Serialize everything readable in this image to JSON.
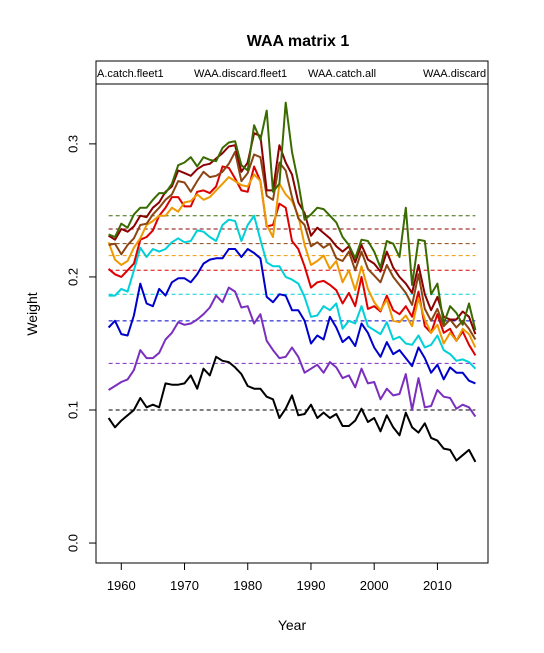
{
  "chart_data": {
    "type": "line",
    "title": "WAA matrix 1",
    "xlabel": "Year",
    "ylabel": "Weight",
    "xlim": [
      1956,
      2018
    ],
    "ylim": [
      -0.015,
      0.345
    ],
    "x_ticks": [
      1960,
      1970,
      1980,
      1990,
      2000,
      2010
    ],
    "x_tick_labels": [
      "1960",
      "1970",
      "1980",
      "1990",
      "2000",
      "2010"
    ],
    "y_ticks": [
      0.0,
      0.1,
      0.2,
      0.3
    ],
    "y_tick_labels": [
      "0.0",
      "0.1",
      "0.2",
      "0.3"
    ],
    "legend_placement": "top (strip above plot, clipped)",
    "legend_labels": [
      "A.catch.fleet1",
      "WAA.discard.fleet1",
      "WAA.catch.all",
      "WAA.discard"
    ],
    "grid": false,
    "x": [
      1958,
      1959,
      1960,
      1961,
      1962,
      1963,
      1964,
      1965,
      1966,
      1967,
      1968,
      1969,
      1970,
      1971,
      1972,
      1973,
      1974,
      1975,
      1976,
      1977,
      1978,
      1979,
      1980,
      1981,
      1982,
      1983,
      1984,
      1985,
      1986,
      1987,
      1988,
      1989,
      1990,
      1991,
      1992,
      1993,
      1994,
      1995,
      1996,
      1997,
      1998,
      1999,
      2000,
      2001,
      2002,
      2003,
      2004,
      2005,
      2006,
      2007,
      2008,
      2009,
      2010,
      2011,
      2012,
      2013,
      2014,
      2015,
      2016
    ],
    "series": [
      {
        "color": "#000000",
        "mean": 0.1,
        "values": [
          0.094,
          0.087,
          0.092,
          0.096,
          0.1,
          0.109,
          0.102,
          0.104,
          0.102,
          0.12,
          0.119,
          0.119,
          0.12,
          0.126,
          0.116,
          0.131,
          0.126,
          0.14,
          0.137,
          0.136,
          0.132,
          0.127,
          0.118,
          0.116,
          0.116,
          0.11,
          0.108,
          0.094,
          0.101,
          0.111,
          0.096,
          0.097,
          0.104,
          0.094,
          0.098,
          0.094,
          0.097,
          0.088,
          0.088,
          0.092,
          0.101,
          0.091,
          0.094,
          0.084,
          0.096,
          0.087,
          0.081,
          0.098,
          0.087,
          0.083,
          0.09,
          0.079,
          0.077,
          0.071,
          0.07,
          0.062,
          0.066,
          0.07,
          0.061
        ]
      },
      {
        "color": "#7b2fbe",
        "mean": 0.135,
        "values": [
          0.115,
          0.118,
          0.121,
          0.123,
          0.13,
          0.145,
          0.139,
          0.139,
          0.143,
          0.153,
          0.158,
          0.166,
          0.164,
          0.165,
          0.168,
          0.172,
          0.177,
          0.186,
          0.181,
          0.192,
          0.189,
          0.177,
          0.178,
          0.165,
          0.172,
          0.152,
          0.145,
          0.139,
          0.14,
          0.147,
          0.14,
          0.128,
          0.131,
          0.134,
          0.128,
          0.136,
          0.132,
          0.124,
          0.126,
          0.117,
          0.131,
          0.12,
          0.121,
          0.108,
          0.116,
          0.111,
          0.112,
          0.127,
          0.1,
          0.124,
          0.102,
          0.103,
          0.115,
          0.11,
          0.109,
          0.101,
          0.104,
          0.102,
          0.095
        ]
      },
      {
        "color": "#0000cc",
        "mean": 0.167,
        "values": [
          0.162,
          0.167,
          0.157,
          0.156,
          0.171,
          0.195,
          0.18,
          0.178,
          0.191,
          0.186,
          0.196,
          0.199,
          0.199,
          0.196,
          0.202,
          0.21,
          0.213,
          0.214,
          0.214,
          0.221,
          0.221,
          0.215,
          0.221,
          0.218,
          0.214,
          0.185,
          0.181,
          0.187,
          0.186,
          0.175,
          0.175,
          0.167,
          0.15,
          0.156,
          0.153,
          0.17,
          0.162,
          0.151,
          0.155,
          0.148,
          0.165,
          0.158,
          0.147,
          0.14,
          0.151,
          0.142,
          0.145,
          0.139,
          0.133,
          0.147,
          0.139,
          0.128,
          0.134,
          0.123,
          0.132,
          0.128,
          0.128,
          0.122,
          0.12
        ]
      },
      {
        "color": "#00d0d8",
        "mean": 0.187,
        "values": [
          0.186,
          0.186,
          0.191,
          0.189,
          0.205,
          0.222,
          0.215,
          0.221,
          0.219,
          0.221,
          0.226,
          0.229,
          0.226,
          0.227,
          0.235,
          0.234,
          0.23,
          0.227,
          0.239,
          0.243,
          0.242,
          0.227,
          0.239,
          0.246,
          0.228,
          0.211,
          0.208,
          0.208,
          0.2,
          0.198,
          0.195,
          0.185,
          0.17,
          0.171,
          0.178,
          0.175,
          0.18,
          0.161,
          0.167,
          0.165,
          0.178,
          0.163,
          0.16,
          0.157,
          0.166,
          0.153,
          0.155,
          0.15,
          0.149,
          0.156,
          0.147,
          0.149,
          0.156,
          0.145,
          0.142,
          0.137,
          0.138,
          0.136,
          0.131
        ]
      },
      {
        "color": "#dd0000",
        "mean": 0.205,
        "values": [
          0.206,
          0.202,
          0.2,
          0.205,
          0.21,
          0.228,
          0.23,
          0.235,
          0.246,
          0.252,
          0.26,
          0.26,
          0.253,
          0.253,
          0.264,
          0.265,
          0.263,
          0.268,
          0.283,
          0.282,
          0.274,
          0.265,
          0.264,
          0.283,
          0.272,
          0.238,
          0.239,
          0.255,
          0.252,
          0.227,
          0.221,
          0.208,
          0.192,
          0.196,
          0.197,
          0.194,
          0.19,
          0.18,
          0.188,
          0.178,
          0.2,
          0.176,
          0.178,
          0.174,
          0.186,
          0.175,
          0.172,
          0.178,
          0.17,
          0.189,
          0.163,
          0.158,
          0.172,
          0.158,
          0.161,
          0.152,
          0.159,
          0.149,
          0.141
        ]
      },
      {
        "color": "#ee9900",
        "mean": 0.216,
        "values": [
          0.226,
          0.213,
          0.209,
          0.212,
          0.222,
          0.229,
          0.239,
          0.242,
          0.246,
          0.246,
          0.252,
          0.249,
          0.256,
          0.257,
          0.262,
          0.258,
          0.26,
          0.265,
          0.27,
          0.275,
          0.272,
          0.269,
          0.268,
          0.277,
          0.272,
          0.239,
          0.23,
          0.27,
          0.262,
          0.257,
          0.246,
          0.224,
          0.209,
          0.212,
          0.216,
          0.206,
          0.212,
          0.196,
          0.205,
          0.19,
          0.208,
          0.191,
          0.181,
          0.175,
          0.183,
          0.167,
          0.166,
          0.171,
          0.163,
          0.184,
          0.168,
          0.158,
          0.164,
          0.15,
          0.158,
          0.152,
          0.161,
          0.157,
          0.147
        ]
      },
      {
        "color": "#8b4513",
        "mean": 0.225,
        "values": [
          0.224,
          0.225,
          0.217,
          0.224,
          0.229,
          0.239,
          0.24,
          0.247,
          0.252,
          0.258,
          0.262,
          0.272,
          0.271,
          0.264,
          0.272,
          0.279,
          0.275,
          0.276,
          0.279,
          0.285,
          0.294,
          0.272,
          0.278,
          0.292,
          0.29,
          0.261,
          0.258,
          0.286,
          0.28,
          0.26,
          0.244,
          0.239,
          0.223,
          0.226,
          0.222,
          0.225,
          0.214,
          0.212,
          0.219,
          0.205,
          0.219,
          0.206,
          0.201,
          0.196,
          0.209,
          0.2,
          0.194,
          0.188,
          0.179,
          0.202,
          0.176,
          0.167,
          0.176,
          0.163,
          0.168,
          0.162,
          0.167,
          0.161,
          0.153
        ]
      },
      {
        "color": "#8b0000",
        "mean": 0.236,
        "values": [
          0.231,
          0.228,
          0.236,
          0.234,
          0.238,
          0.246,
          0.245,
          0.252,
          0.256,
          0.264,
          0.268,
          0.28,
          0.278,
          0.276,
          0.281,
          0.284,
          0.285,
          0.289,
          0.293,
          0.298,
          0.299,
          0.279,
          0.286,
          0.308,
          0.306,
          0.265,
          0.265,
          0.299,
          0.286,
          0.277,
          0.256,
          0.248,
          0.231,
          0.237,
          0.233,
          0.229,
          0.223,
          0.219,
          0.223,
          0.211,
          0.224,
          0.213,
          0.21,
          0.204,
          0.219,
          0.207,
          0.2,
          0.195,
          0.188,
          0.209,
          0.187,
          0.175,
          0.185,
          0.17,
          0.168,
          0.168,
          0.174,
          0.17,
          0.157
        ]
      },
      {
        "color": "#3a6b00",
        "mean": 0.246,
        "values": [
          0.232,
          0.23,
          0.24,
          0.237,
          0.247,
          0.252,
          0.252,
          0.258,
          0.263,
          0.263,
          0.27,
          0.284,
          0.286,
          0.29,
          0.283,
          0.29,
          0.288,
          0.287,
          0.297,
          0.301,
          0.302,
          0.284,
          0.28,
          0.314,
          0.303,
          0.325,
          0.264,
          0.27,
          0.331,
          0.294,
          0.271,
          0.243,
          0.247,
          0.252,
          0.251,
          0.246,
          0.241,
          0.23,
          0.224,
          0.214,
          0.228,
          0.227,
          0.219,
          0.207,
          0.227,
          0.225,
          0.215,
          0.252,
          0.194,
          0.228,
          0.227,
          0.187,
          0.195,
          0.165,
          0.178,
          0.173,
          0.164,
          0.18,
          0.16
        ]
      }
    ]
  }
}
